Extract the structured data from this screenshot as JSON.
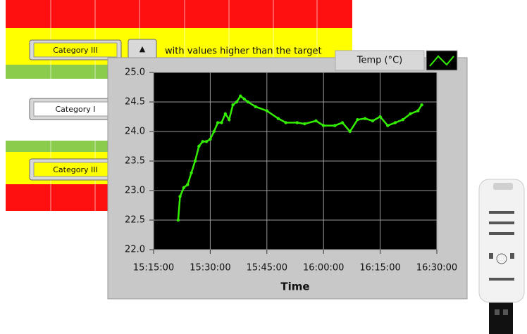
{
  "table": {
    "buttons": [
      "Category III",
      "Category I",
      "Category III"
    ],
    "spin_arrow": "▲",
    "note": "with values higher than the target"
  },
  "chart_data": {
    "type": "line",
    "x": [
      "15:21:30",
      "15:22:00",
      "15:23:00",
      "15:24:00",
      "15:25:00",
      "15:26:00",
      "15:27:00",
      "15:28:00",
      "15:29:00",
      "15:30:00",
      "15:31:00",
      "15:32:00",
      "15:33:00",
      "15:34:00",
      "15:35:00",
      "15:36:00",
      "15:37:00",
      "15:38:00",
      "15:39:00",
      "15:40:00",
      "15:42:00",
      "15:45:00",
      "15:48:00",
      "15:50:00",
      "15:53:00",
      "15:55:00",
      "15:58:00",
      "16:00:00",
      "16:03:00",
      "16:05:00",
      "16:07:00",
      "16:09:00",
      "16:11:00",
      "16:13:00",
      "16:15:00",
      "16:17:00",
      "16:19:00",
      "16:21:00",
      "16:23:00",
      "16:25:00",
      "16:26:00"
    ],
    "series": [
      {
        "name": "Temp (°C)",
        "color": "#33ee00",
        "values": [
          22.5,
          22.9,
          23.05,
          23.1,
          23.3,
          23.5,
          23.75,
          23.83,
          23.83,
          23.87,
          24.0,
          24.15,
          24.15,
          24.3,
          24.2,
          24.45,
          24.5,
          24.6,
          24.55,
          24.5,
          24.42,
          24.35,
          24.22,
          24.15,
          24.15,
          24.13,
          24.18,
          24.1,
          24.1,
          24.15,
          24.0,
          24.2,
          24.22,
          24.18,
          24.25,
          24.1,
          24.15,
          24.2,
          24.3,
          24.35,
          24.45
        ]
      }
    ],
    "xlabel": "Time",
    "xlim": [
      "15:15:00",
      "16:30:00"
    ],
    "xticks": [
      "15:15:00",
      "15:30:00",
      "15:45:00",
      "16:00:00",
      "16:15:00",
      "16:30:00"
    ],
    "ylim": [
      22,
      25
    ],
    "yticks": [
      {
        "value": 22,
        "label": "22.0"
      },
      {
        "value": 22.5,
        "label": "22.5"
      },
      {
        "value": 23,
        "label": "23.0"
      },
      {
        "value": 23.5,
        "label": "23.5"
      },
      {
        "value": 24,
        "label": "24.0"
      },
      {
        "value": 24.5,
        "label": "24.5"
      },
      {
        "value": 25,
        "label": "25.0"
      }
    ],
    "grid": true
  }
}
